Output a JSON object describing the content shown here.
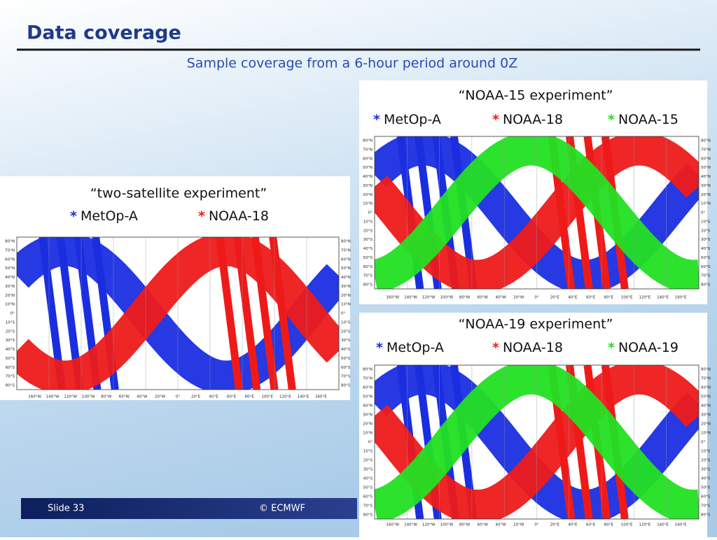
{
  "header": {
    "title": "Data coverage",
    "subtitle": "Sample coverage from a 6-hour period around 0Z"
  },
  "map_axes": {
    "lat_labels": [
      "80°N",
      "70°N",
      "60°N",
      "50°N",
      "40°N",
      "30°N",
      "20°N",
      "10°N",
      "0°",
      "10°S",
      "20°S",
      "30°S",
      "40°S",
      "50°S",
      "60°S",
      "70°S",
      "80°S"
    ],
    "lon_labels": [
      "160°W",
      "140°W",
      "120°W",
      "100°W",
      "80°W",
      "60°W",
      "40°W",
      "20°W",
      "0°",
      "20°E",
      "40°E",
      "60°E",
      "80°E",
      "100°E",
      "120°E",
      "140°E",
      "160°E"
    ]
  },
  "panels": [
    {
      "title": "“two-satellite experiment”",
      "legend": [
        {
          "marker": "*",
          "label": "MetOp-A",
          "color": "#1a2ee0"
        },
        {
          "marker": "*",
          "label": "NOAA-18",
          "color": "#ee1a1a"
        }
      ]
    },
    {
      "title": "“NOAA-15 experiment”",
      "legend": [
        {
          "marker": "*",
          "label": "MetOp-A",
          "color": "#1a2ee0"
        },
        {
          "marker": "*",
          "label": "NOAA-18",
          "color": "#ee1a1a"
        },
        {
          "marker": "*",
          "label": "NOAA-15",
          "color": "#22e022"
        }
      ]
    },
    {
      "title": "“NOAA-19 experiment”",
      "legend": [
        {
          "marker": "*",
          "label": "MetOp-A",
          "color": "#1a2ee0"
        },
        {
          "marker": "*",
          "label": "NOAA-18",
          "color": "#ee1a1a"
        },
        {
          "marker": "*",
          "label": "NOAA-19",
          "color": "#22e022"
        }
      ]
    }
  ],
  "footer": {
    "slide": "Slide 33",
    "copyright": "© ECMWF"
  }
}
